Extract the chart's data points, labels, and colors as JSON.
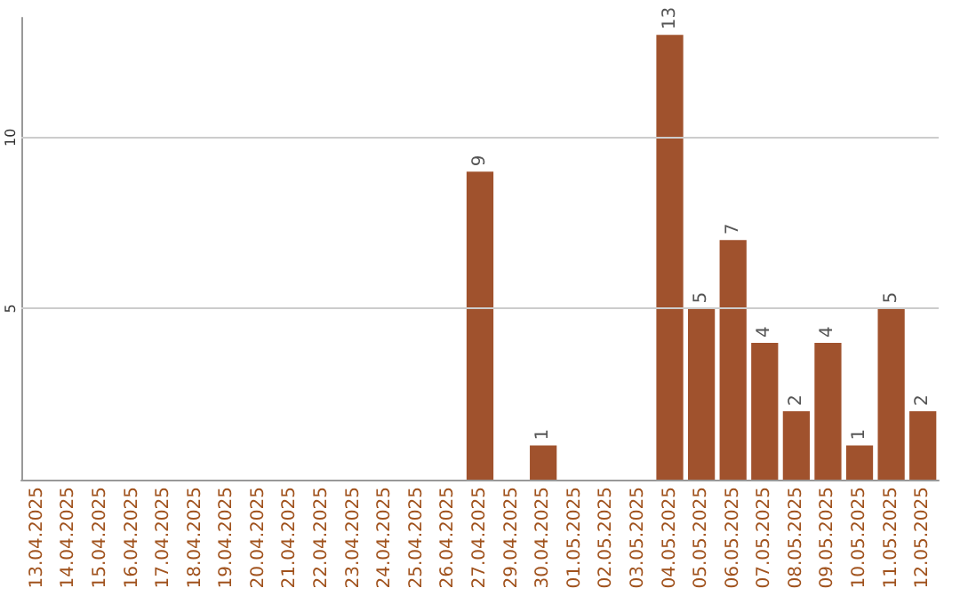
{
  "chart_data": {
    "type": "bar",
    "categories": [
      "13.04.2025",
      "14.04.2025",
      "15.04.2025",
      "16.04.2025",
      "17.04.2025",
      "18.04.2025",
      "19.04.2025",
      "20.04.2025",
      "21.04.2025",
      "22.04.2025",
      "23.04.2025",
      "24.04.2025",
      "25.04.2025",
      "26.04.2025",
      "27.04.2025",
      "29.04.2025",
      "30.04.2025",
      "01.05.2025",
      "02.05.2025",
      "03.05.2025",
      "04.05.2025",
      "05.05.2025",
      "06.05.2025",
      "07.05.2025",
      "08.05.2025",
      "09.05.2025",
      "10.05.2025",
      "11.05.2025",
      "12.05.2025"
    ],
    "values": [
      0,
      0,
      0,
      0,
      0,
      0,
      0,
      0,
      0,
      0,
      0,
      0,
      0,
      0,
      9,
      0,
      1,
      0,
      0,
      0,
      13,
      5,
      7,
      4,
      2,
      4,
      1,
      5,
      2
    ],
    "value_labels": [
      null,
      null,
      null,
      null,
      null,
      null,
      null,
      null,
      null,
      null,
      null,
      null,
      null,
      null,
      "9",
      null,
      "1",
      null,
      null,
      null,
      "13",
      "5",
      "7",
      "4",
      "2",
      "4",
      "1",
      "5",
      "2"
    ],
    "color": "#a0522d",
    "ylim": [
      0,
      13.5
    ],
    "yticks": [
      5,
      10
    ],
    "grid": "y"
  }
}
